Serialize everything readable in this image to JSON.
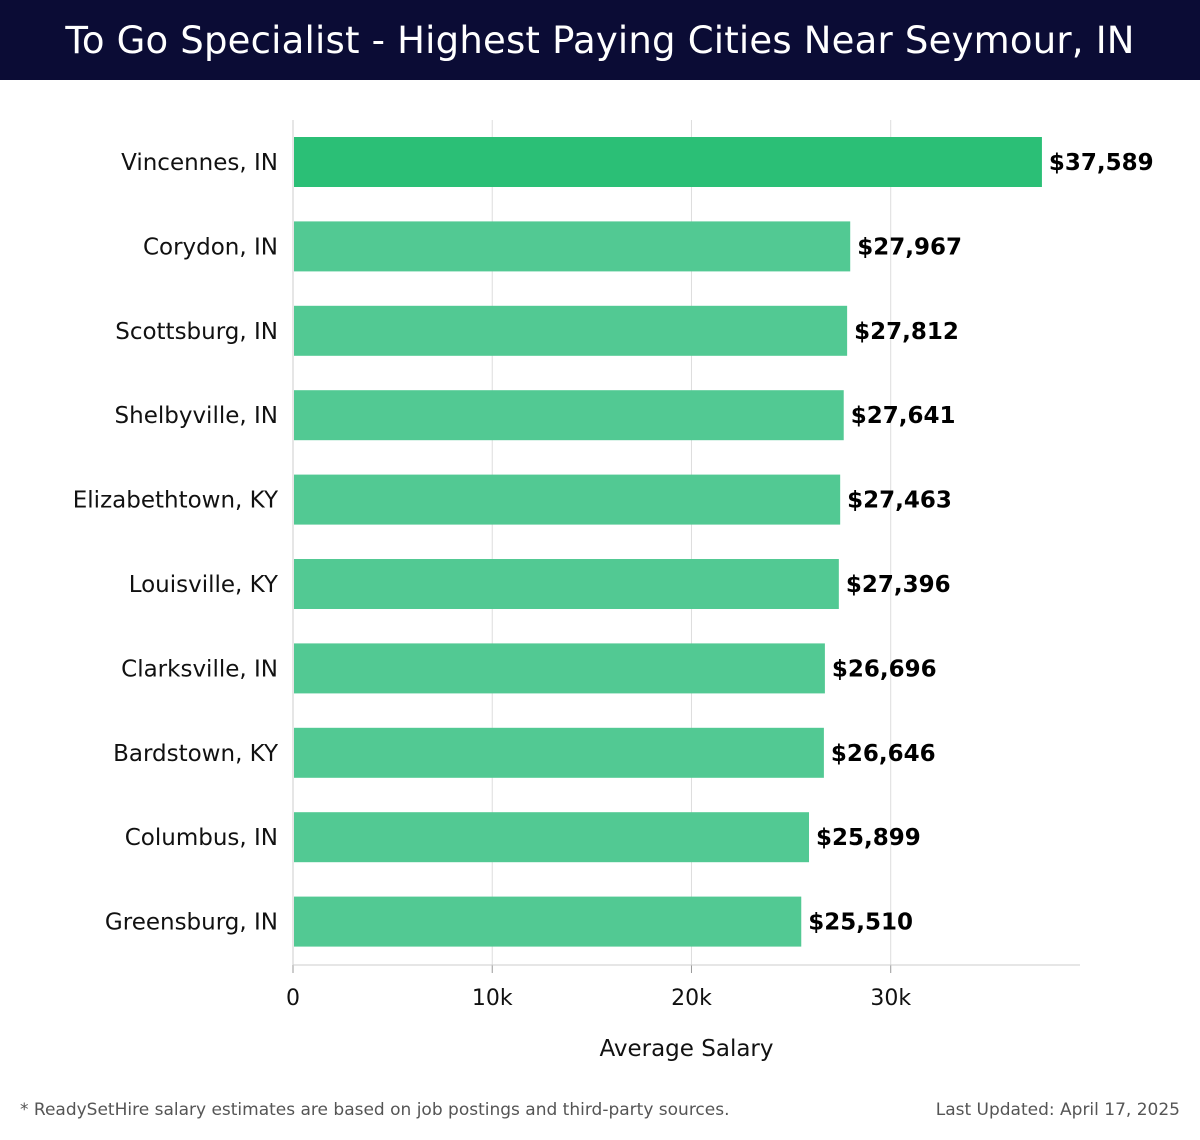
{
  "chart_data": {
    "type": "bar",
    "orientation": "horizontal",
    "title": "To Go Specialist - Highest Paying Cities Near Seymour, IN",
    "xlabel": "Average Salary",
    "ylabel": "",
    "xlim": [
      0,
      39500
    ],
    "xticks": [
      0,
      10000,
      20000,
      30000
    ],
    "xtick_labels": [
      "0",
      "10k",
      "20k",
      "30k"
    ],
    "grid": "vertical",
    "categories": [
      "Vincennes, IN",
      "Corydon, IN",
      "Scottsburg, IN",
      "Shelbyville, IN",
      "Elizabethtown, KY",
      "Louisville, KY",
      "Clarksville, IN",
      "Bardstown, KY",
      "Columbus, IN",
      "Greensburg, IN"
    ],
    "values": [
      37589,
      27967,
      27812,
      27641,
      27463,
      27396,
      26696,
      26646,
      25899,
      25510
    ],
    "value_labels": [
      "$37,589",
      "$27,967",
      "$27,812",
      "$27,641",
      "$27,463",
      "$27,396",
      "$26,696",
      "$26,646",
      "$25,899",
      "$25,510"
    ],
    "highlight_color": "#2bbf76",
    "bar_color": "#52c993"
  },
  "footer": {
    "note": "* ReadySetHire salary estimates are based on job postings and third-party sources.",
    "updated": "Last Updated: April 17, 2025"
  }
}
